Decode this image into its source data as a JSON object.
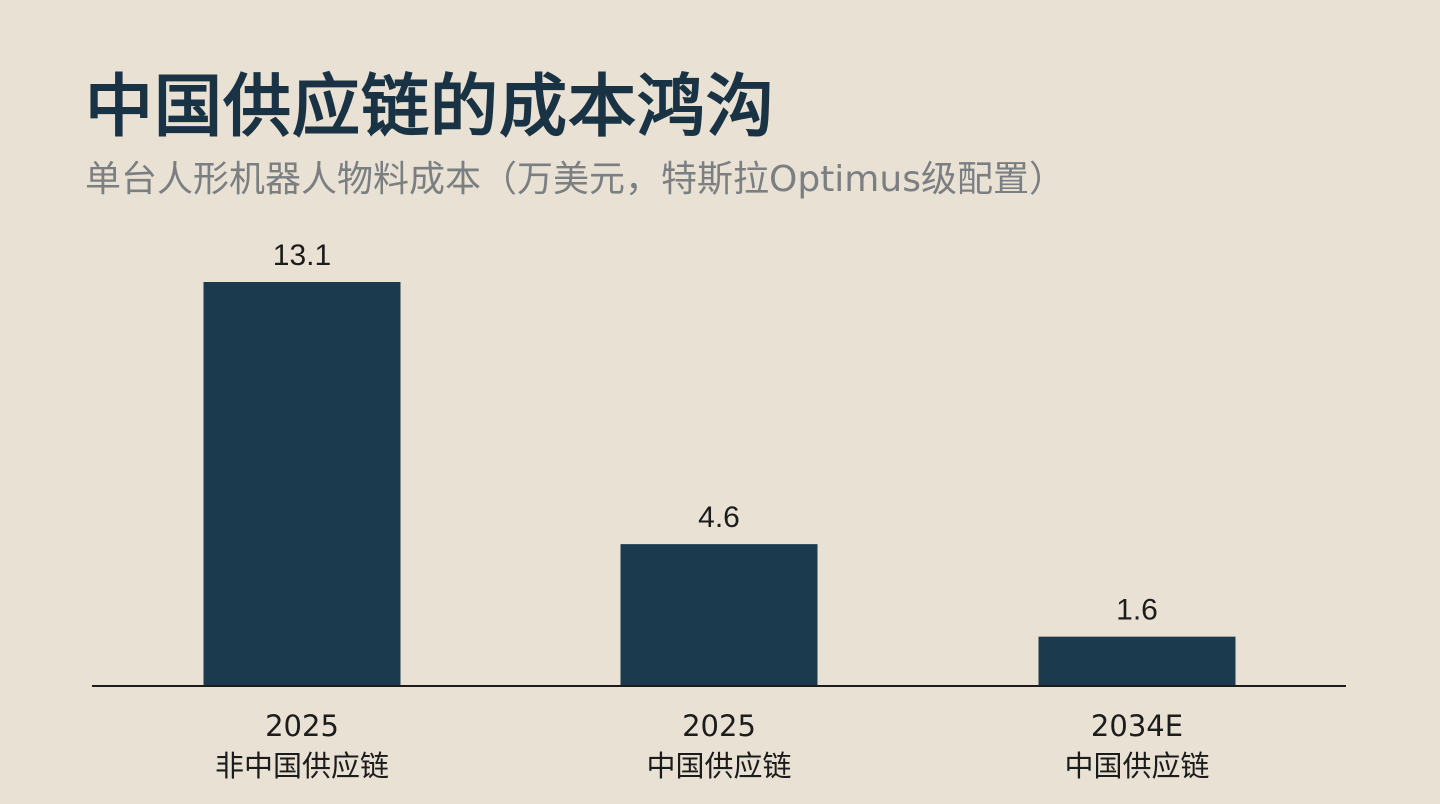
{
  "chart_data": {
    "type": "bar",
    "title": "中国供应链的成本鸿沟",
    "subtitle": "单台人形机器人物料成本（万美元，特斯拉Optimus级配置）",
    "categories": [
      [
        "2025",
        "非中国供应链"
      ],
      [
        "2025",
        "中国供应链"
      ],
      [
        "2034E",
        "中国供应链"
      ]
    ],
    "values": [
      13.1,
      4.6,
      1.6
    ],
    "value_labels": [
      "13.1",
      "4.6",
      "1.6"
    ],
    "ylim": [
      0,
      13.1
    ],
    "grid": false,
    "legend": "none",
    "colors": {
      "background": "#e9e2d4",
      "bar": "#1b3a4d",
      "title": "#1a3344",
      "subtitle": "#7b7f82",
      "axis": "#1c1c1c"
    }
  }
}
